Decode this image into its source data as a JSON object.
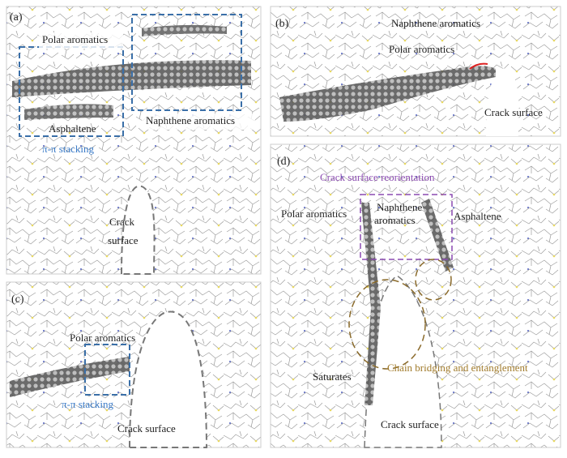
{
  "panels": [
    {
      "label": "(a)",
      "polar": "Polar aromatics",
      "naphthene": "Naphthene aromatics",
      "asphaltene": "Asphaltene",
      "stacking": "π-π stacking",
      "crack": [
        "Crack",
        "surface"
      ]
    },
    {
      "label": "(b)",
      "naphthene": "Naphthene aromatics",
      "polar": "Polar aromatics",
      "crack": "Crack surface"
    },
    {
      "label": "(c)",
      "polar": "Polar aromatics",
      "stacking": "π-π stacking",
      "crack": "Crack surface"
    },
    {
      "label": "(d)",
      "reorientation": "Crack surface reorientation",
      "naphthene": [
        "Naphthene",
        "aromatics"
      ],
      "polar": "Polar aromatics",
      "asphaltene": "Asphaltene",
      "bridging": "Chain bridging and entanglement",
      "saturates": "Saturates",
      "crack": "Crack surface"
    }
  ]
}
